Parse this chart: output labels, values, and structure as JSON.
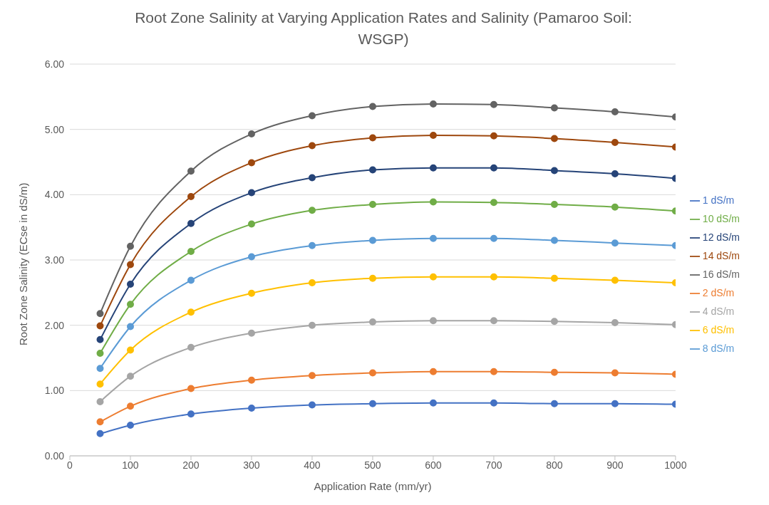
{
  "chart_data": {
    "type": "line",
    "title": "Root Zone Salinity at Varying Application Rates and Salinity (Pamaroo Soil: WSGP)",
    "xlabel": "Application Rate (mm/yr)",
    "ylabel": "Root Zone Salinity (ECse in dS/m)",
    "x": [
      50,
      100,
      200,
      300,
      400,
      500,
      600,
      700,
      800,
      900,
      1000
    ],
    "series": [
      {
        "name": "1 dS/m",
        "color": "#4472c4",
        "values": [
          0.34,
          0.47,
          0.64,
          0.73,
          0.78,
          0.8,
          0.81,
          0.81,
          0.8,
          0.8,
          0.79
        ]
      },
      {
        "name": "2 dS/m",
        "color": "#ed7d31",
        "values": [
          0.52,
          0.76,
          1.03,
          1.16,
          1.23,
          1.27,
          1.29,
          1.29,
          1.28,
          1.27,
          1.25
        ]
      },
      {
        "name": "4 dS/m",
        "color": "#a5a5a5",
        "values": [
          0.83,
          1.22,
          1.66,
          1.88,
          2.0,
          2.05,
          2.07,
          2.07,
          2.06,
          2.04,
          2.01
        ]
      },
      {
        "name": "6 dS/m",
        "color": "#ffc000",
        "values": [
          1.1,
          1.62,
          2.2,
          2.49,
          2.65,
          2.72,
          2.74,
          2.74,
          2.72,
          2.69,
          2.65
        ]
      },
      {
        "name": "8 dS/m",
        "color": "#5b9bd5",
        "values": [
          1.34,
          1.98,
          2.69,
          3.05,
          3.22,
          3.3,
          3.33,
          3.33,
          3.3,
          3.26,
          3.22
        ]
      },
      {
        "name": "10 dS/m",
        "color": "#70ad47",
        "values": [
          1.57,
          2.32,
          3.13,
          3.55,
          3.76,
          3.85,
          3.89,
          3.88,
          3.85,
          3.81,
          3.75
        ]
      },
      {
        "name": "12 dS/m",
        "color": "#264478",
        "values": [
          1.78,
          2.63,
          3.56,
          4.03,
          4.26,
          4.38,
          4.41,
          4.41,
          4.37,
          4.32,
          4.25
        ]
      },
      {
        "name": "14 dS/m",
        "color": "#9e480e",
        "values": [
          1.99,
          2.93,
          3.97,
          4.49,
          4.75,
          4.87,
          4.91,
          4.9,
          4.86,
          4.8,
          4.73
        ]
      },
      {
        "name": "16 dS/m",
        "color": "#636363",
        "values": [
          2.18,
          3.21,
          4.36,
          4.93,
          5.21,
          5.35,
          5.39,
          5.38,
          5.33,
          5.27,
          5.19
        ]
      }
    ],
    "xlim": [
      0,
      1000
    ],
    "xticks": [
      0,
      100,
      200,
      300,
      400,
      500,
      600,
      700,
      800,
      900,
      1000
    ],
    "ylim": [
      0,
      6
    ],
    "yticks": [
      {
        "value": 0,
        "label": "0.00"
      },
      {
        "value": 1,
        "label": "1.00"
      },
      {
        "value": 2,
        "label": "2.00"
      },
      {
        "value": 3,
        "label": "3.00"
      },
      {
        "value": 4,
        "label": "4.00"
      },
      {
        "value": 5,
        "label": "5.00"
      },
      {
        "value": 6,
        "label": "6.00"
      }
    ],
    "grid": "y",
    "legend": "right",
    "marker": "circle",
    "line_style": "solid"
  }
}
